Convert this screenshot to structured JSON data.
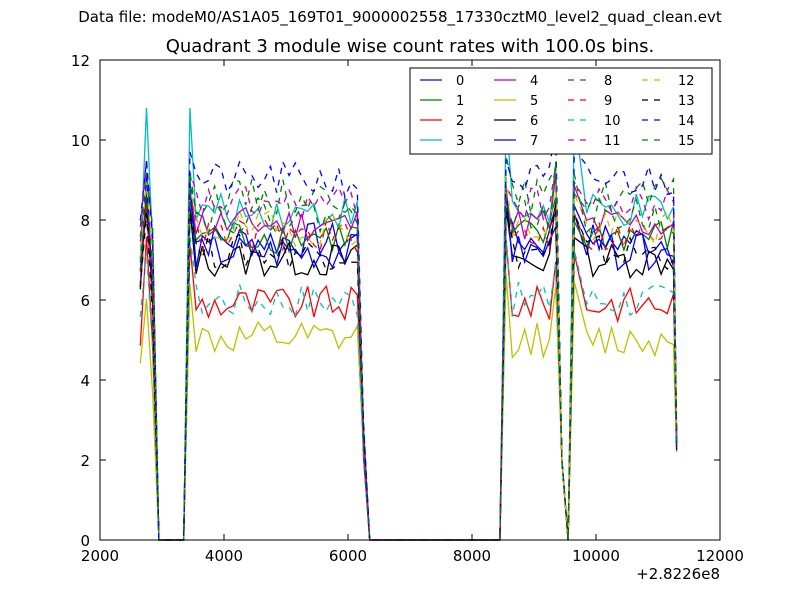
{
  "suptitle": "Data file: modeM0/AS1A05_169T01_9000002558_17330cztM0_level2_quad_clean.evt",
  "chart_data": {
    "type": "line",
    "title": "Quadrant 3 module wise count rates with 100.0s bins.",
    "xlabel": "",
    "ylabel": "",
    "xlim": [
      2000,
      12000
    ],
    "ylim": [
      0,
      12
    ],
    "xticks": [
      2000,
      4000,
      6000,
      8000,
      10000,
      12000
    ],
    "yticks": [
      0,
      2,
      4,
      6,
      8,
      10,
      12
    ],
    "x_offset_label": "+2.8226e8",
    "legend_position": "upper-right",
    "legend_columns": 4,
    "breakpoints_x": [
      2650,
      2750,
      2850,
      2950,
      3050,
      3350,
      3450,
      6150,
      6250,
      6350,
      6450,
      8450,
      8550,
      9350,
      9450,
      9550,
      9650,
      9750,
      11250,
      11300
    ],
    "series": [
      {
        "name": "0",
        "color": "#0000ff",
        "dash": "solid",
        "level": 7.5,
        "spike": 8.6,
        "dip": 0.0
      },
      {
        "name": "1",
        "color": "#008000",
        "dash": "solid",
        "level": 7.6,
        "spike": 8.3,
        "dip": 0.0
      },
      {
        "name": "2",
        "color": "#ff0000",
        "dash": "solid",
        "level": 5.9,
        "spike": 7.4,
        "dip": 0.0
      },
      {
        "name": "3",
        "color": "#00bfbf",
        "dash": "solid",
        "level": 8.2,
        "spike": 10.8,
        "dip": 0.0
      },
      {
        "name": "4",
        "color": "#bf00bf",
        "dash": "solid",
        "level": 7.9,
        "spike": 8.9,
        "dip": 0.0
      },
      {
        "name": "5",
        "color": "#bfbf00",
        "dash": "solid",
        "level": 5.0,
        "spike": 6.4,
        "dip": 0.0
      },
      {
        "name": "6",
        "color": "#000000",
        "dash": "solid",
        "level": 7.0,
        "spike": 8.3,
        "dip": 0.0
      },
      {
        "name": "7",
        "color": "#0000ff",
        "dash": "solid",
        "level": 7.2,
        "spike": 9.0,
        "dip": 0.0
      },
      {
        "name": "8",
        "color": "#008000",
        "dash": "dashed",
        "level": 8.6,
        "spike": 9.2,
        "dip": 0.0
      },
      {
        "name": "9",
        "color": "#ff0000",
        "dash": "dashed",
        "level": 7.6,
        "spike": 8.6,
        "dip": 0.0
      },
      {
        "name": "10",
        "color": "#00bfbf",
        "dash": "dashed",
        "level": 6.0,
        "spike": 7.6,
        "dip": 0.0
      },
      {
        "name": "11",
        "color": "#bf00bf",
        "dash": "dashed",
        "level": 8.4,
        "spike": 9.2,
        "dip": 0.0
      },
      {
        "name": "12",
        "color": "#bfbf00",
        "dash": "dashed",
        "level": 7.8,
        "spike": 8.8,
        "dip": 0.0
      },
      {
        "name": "13",
        "color": "#000000",
        "dash": "dashed",
        "level": 7.2,
        "spike": 8.2,
        "dip": 0.0
      },
      {
        "name": "14",
        "color": "#0000ff",
        "dash": "dashed",
        "level": 9.0,
        "spike": 9.7,
        "dip": 0.0
      },
      {
        "name": "15",
        "color": "#008000",
        "dash": "dashed",
        "level": 8.1,
        "spike": 9.0,
        "dip": 0.0
      }
    ]
  }
}
